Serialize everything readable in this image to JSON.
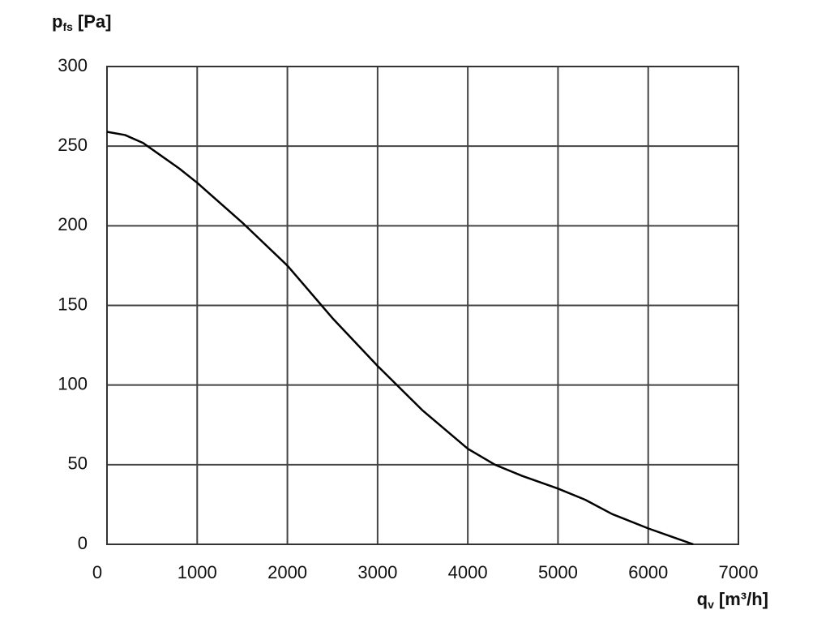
{
  "chart_data": {
    "type": "line",
    "ylabel": {
      "symbol": "p",
      "subscript": "fs",
      "unit": "[Pa]"
    },
    "xlabel": {
      "symbol": "q",
      "subscript": "v",
      "unit": "[m³/h]"
    },
    "x": [
      0,
      200,
      400,
      600,
      800,
      1000,
      1500,
      2000,
      2500,
      3000,
      3500,
      4000,
      4300,
      4600,
      5000,
      5300,
      5600,
      6000,
      6300,
      6500
    ],
    "values": [
      259,
      257,
      252,
      244,
      236,
      227,
      202,
      175,
      142,
      112,
      84,
      60,
      50,
      43,
      35,
      28,
      19,
      10,
      4,
      0
    ],
    "color": "#000000",
    "xlim": [
      0,
      7000
    ],
    "xticks": [
      0,
      1000,
      2000,
      3000,
      4000,
      5000,
      6000,
      7000
    ],
    "ylim": [
      0,
      300
    ],
    "yticks": [
      0,
      50,
      100,
      150,
      200,
      250,
      300
    ],
    "grid": true
  }
}
